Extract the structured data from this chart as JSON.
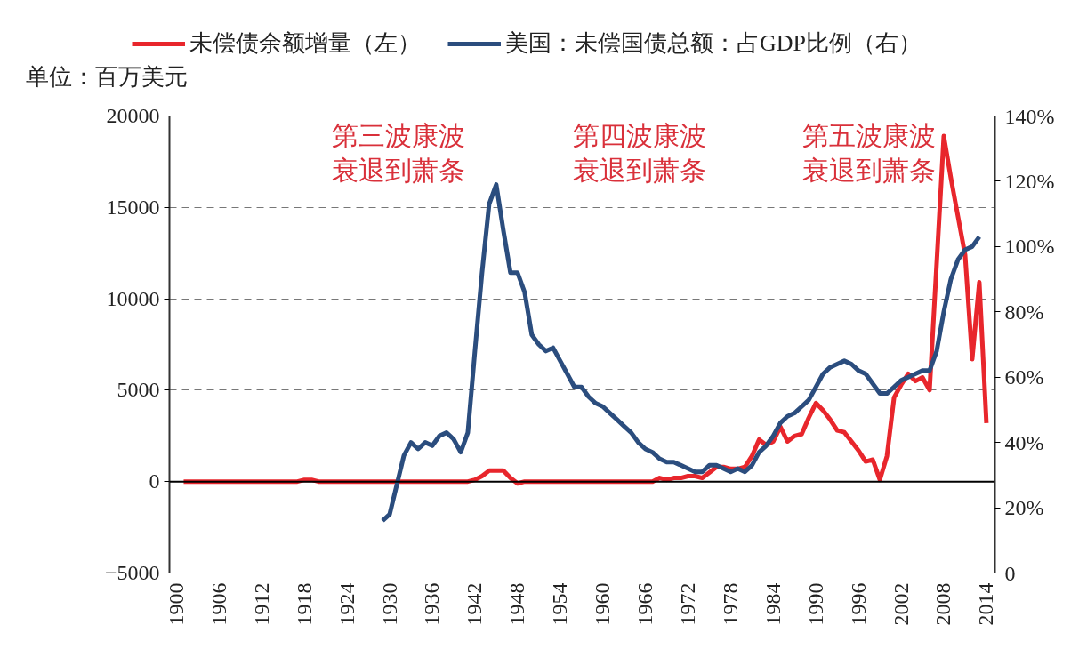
{
  "chart_data": {
    "type": "line",
    "xlim": [
      1899,
      2015.2
    ],
    "xticks": [
      1900,
      1906,
      1912,
      1918,
      1924,
      1930,
      1936,
      1942,
      1948,
      1954,
      1960,
      1966,
      1972,
      1978,
      1984,
      1990,
      1996,
      2002,
      2008,
      2014
    ],
    "ylim": [
      -5000,
      20000
    ],
    "yticks": [
      {
        "value": -5000,
        "label": "−5000"
      },
      0,
      5000,
      10000,
      15000,
      20000
    ],
    "y2lim": [
      0,
      140
    ],
    "y2ticks": [
      0,
      {
        "value": 20,
        "label": "20%"
      },
      {
        "value": 40,
        "label": "40%"
      },
      {
        "value": 60,
        "label": "60%"
      },
      {
        "value": 80,
        "label": "80%"
      },
      {
        "value": 100,
        "label": "100%"
      },
      {
        "value": 120,
        "label": "120%"
      },
      {
        "value": 140,
        "label": "140%"
      }
    ],
    "grid": "y",
    "legend": "top",
    "line_style": "solid",
    "ref_lines": [
      {
        "axis": "y",
        "value": 0,
        "color": "#000000",
        "line_style": "solid"
      }
    ],
    "annotations": [
      "单位：百万美元",
      "第三波康波衰退到萧条",
      "第四波康波衰退到萧条",
      "第五波康波衰退到萧条"
    ],
    "series": [
      {
        "name": "未偿债余额增量（左）",
        "color": "#e8262c",
        "x": [
          1901,
          1902,
          1903,
          1904,
          1905,
          1906,
          1907,
          1908,
          1909,
          1910,
          1911,
          1912,
          1913,
          1914,
          1915,
          1916,
          1917,
          1918,
          1919,
          1920,
          1921,
          1922,
          1923,
          1924,
          1925,
          1926,
          1927,
          1928,
          1929,
          1930,
          1931,
          1932,
          1933,
          1934,
          1935,
          1936,
          1937,
          1938,
          1939,
          1940,
          1941,
          1942,
          1943,
          1944,
          1945,
          1946,
          1947,
          1948,
          1949,
          1950,
          1951,
          1952,
          1953,
          1954,
          1955,
          1956,
          1957,
          1958,
          1959,
          1960,
          1961,
          1962,
          1963,
          1964,
          1965,
          1966,
          1967,
          1968,
          1969,
          1970,
          1971,
          1972,
          1973,
          1974,
          1975,
          1976,
          1977,
          1978,
          1979,
          1980,
          1981,
          1982,
          1983,
          1984,
          1985,
          1986,
          1987,
          1988,
          1989,
          1990,
          1991,
          1992,
          1993,
          1994,
          1995,
          1996,
          1997,
          1998,
          1999,
          2000,
          2001,
          2002,
          2003,
          2004,
          2005,
          2006,
          2008,
          2009,
          2010,
          2011,
          2012,
          2013,
          2014
        ],
        "values": [
          0,
          0,
          0,
          0,
          0,
          0,
          0,
          0,
          0,
          0,
          0,
          0,
          0,
          0,
          0,
          0,
          0,
          100,
          100,
          0,
          0,
          0,
          0,
          0,
          0,
          0,
          0,
          0,
          0,
          0,
          0,
          0,
          0,
          0,
          0,
          0,
          0,
          0,
          0,
          0,
          0,
          100,
          300,
          600,
          600,
          600,
          200,
          -100,
          0,
          0,
          0,
          0,
          0,
          0,
          0,
          0,
          0,
          0,
          0,
          0,
          0,
          0,
          0,
          0,
          0,
          0,
          0,
          200,
          100,
          200,
          200,
          300,
          300,
          200,
          500,
          800,
          800,
          700,
          700,
          800,
          1400,
          2300,
          2000,
          2200,
          3000,
          2200,
          2500,
          2600,
          3500,
          4300,
          3900,
          3400,
          2800,
          2700,
          2200,
          1700,
          1100,
          1200,
          100,
          1400,
          4600,
          5300,
          5900,
          5500,
          5700,
          5000,
          18900,
          16600,
          14500,
          12400,
          6700,
          10900,
          3200
        ]
      },
      {
        "name": "美国：未偿国债总额：占GDP比例（右）",
        "color": "#2b4d7e",
        "axis": "y2",
        "x": [
          1929,
          1930,
          1931,
          1932,
          1933,
          1934,
          1935,
          1936,
          1937,
          1938,
          1939,
          1940,
          1941,
          1942,
          1943,
          1944,
          1945,
          1946,
          1947,
          1948,
          1949,
          1950,
          1951,
          1952,
          1953,
          1954,
          1955,
          1956,
          1957,
          1958,
          1959,
          1960,
          1961,
          1962,
          1963,
          1964,
          1965,
          1966,
          1967,
          1968,
          1969,
          1970,
          1971,
          1972,
          1973,
          1974,
          1975,
          1976,
          1977,
          1978,
          1979,
          1980,
          1981,
          1982,
          1983,
          1984,
          1985,
          1986,
          1987,
          1988,
          1989,
          1990,
          1991,
          1992,
          1993,
          1994,
          1995,
          1996,
          1997,
          1998,
          1999,
          2000,
          2001,
          2002,
          2003,
          2004,
          2005,
          2006,
          2007,
          2008,
          2009,
          2010,
          2011,
          2012,
          2013
        ],
        "values": [
          16,
          18,
          27,
          36,
          40,
          38,
          40,
          39,
          42,
          43,
          41,
          37,
          43,
          68,
          92,
          113,
          119,
          105,
          92,
          92,
          86,
          73,
          70,
          68,
          69,
          65,
          61,
          57,
          57,
          54,
          52,
          51,
          49,
          47,
          45,
          43,
          40,
          38,
          37,
          35,
          34,
          34,
          33,
          32,
          31,
          31,
          33,
          33,
          32,
          31,
          32,
          31,
          33,
          37,
          39,
          42,
          46,
          48,
          49,
          51,
          53,
          57,
          61,
          63,
          64,
          65,
          64,
          62,
          61,
          58,
          55,
          55,
          57,
          59,
          60,
          61,
          62,
          62,
          68,
          80,
          90,
          96,
          99,
          100,
          103
        ]
      }
    ]
  }
}
